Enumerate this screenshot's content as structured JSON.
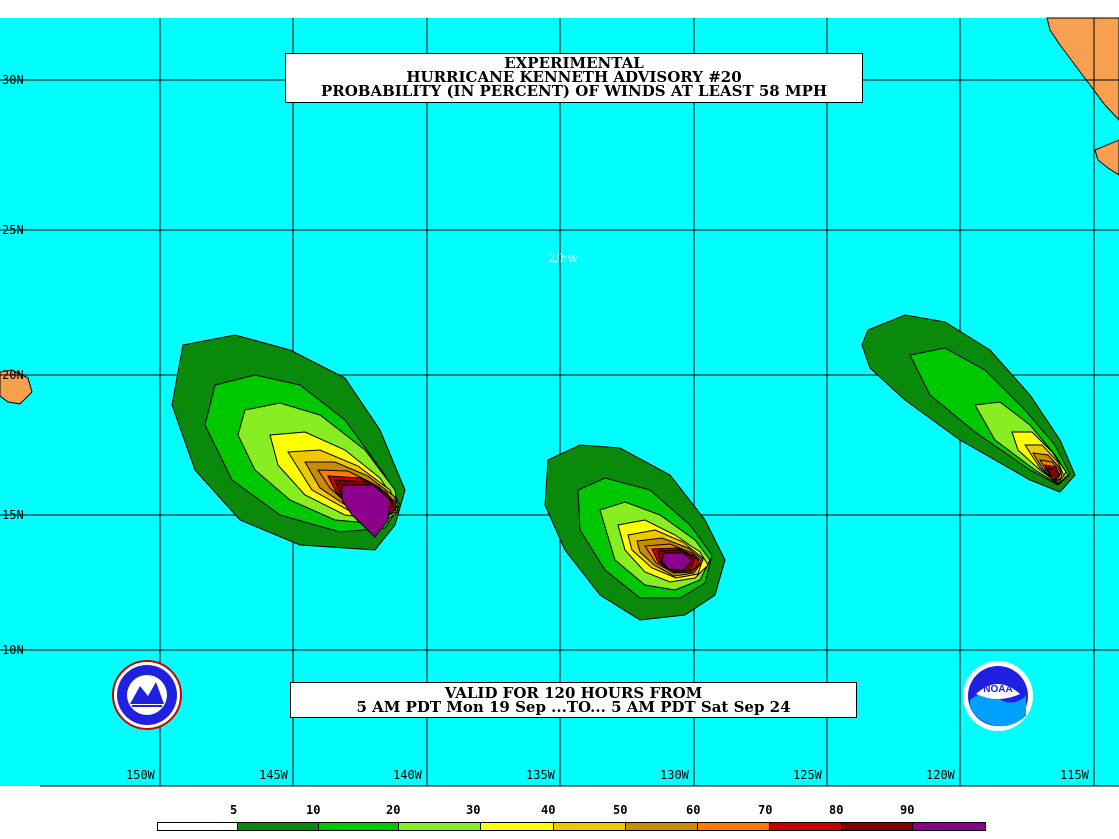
{
  "title": {
    "line1": "EXPERIMENTAL",
    "line2": "HURRICANE KENNETH ADVISORY #20",
    "line3": "PROBABILITY (IN PERCENT) OF WINDS AT LEAST 58 MPH"
  },
  "valid": {
    "line1": "VALID FOR 120 HOURS FROM",
    "line2": "5 AM PDT Mon 19 Sep ...TO... 5 AM PDT Sat Sep 24"
  },
  "initials": "2/hw",
  "lat_labels": [
    "30N",
    "25N",
    "20N",
    "15N",
    "10N"
  ],
  "lon_labels": [
    "150W",
    "145W",
    "140W",
    "135W",
    "130W",
    "125W",
    "120W",
    "115W"
  ],
  "legend": {
    "labels": [
      "5",
      "10",
      "20",
      "30",
      "40",
      "50",
      "60",
      "70",
      "80",
      "90"
    ],
    "colors": [
      "#ffffff",
      "#0a8a0a",
      "#00c800",
      "#88ee22",
      "#ffff00",
      "#eec800",
      "#c88c00",
      "#ff7a00",
      "#c80000",
      "#800000",
      "#8c008c"
    ]
  },
  "colors": {
    "ocean": "#00ffff",
    "land": "#f7a04f",
    "grid": "#000000"
  },
  "icons": {
    "left_logo": "nws-logo-icon",
    "right_logo": "noaa-logo-icon",
    "noaa_text": "NOAA"
  }
}
